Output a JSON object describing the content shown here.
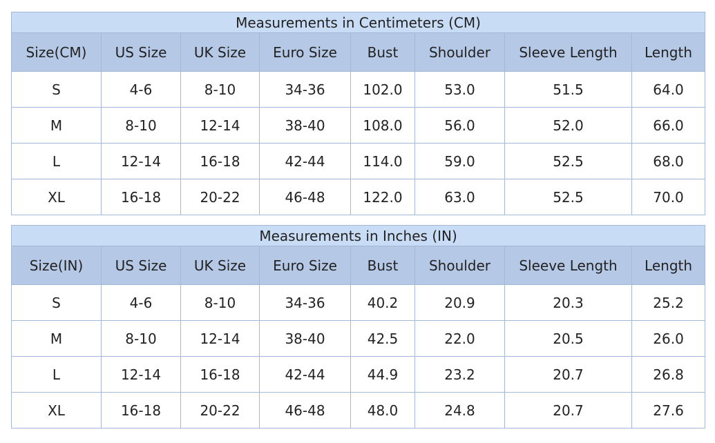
{
  "tables": [
    {
      "title": "Measurements in Centimeters (CM)",
      "headers": [
        "Size(CM)",
        "US Size",
        "UK Size",
        "Euro Size",
        "Bust",
        "Shoulder",
        "Sleeve Length",
        "Length"
      ],
      "rows": [
        [
          "S",
          "4-6",
          "8-10",
          "34-36",
          "102.0",
          "53.0",
          "51.5",
          "64.0"
        ],
        [
          "M",
          "8-10",
          "12-14",
          "38-40",
          "108.0",
          "56.0",
          "52.0",
          "66.0"
        ],
        [
          "L",
          "12-14",
          "16-18",
          "42-44",
          "114.0",
          "59.0",
          "52.5",
          "68.0"
        ],
        [
          "XL",
          "16-18",
          "20-22",
          "46-48",
          "122.0",
          "63.0",
          "52.5",
          "70.0"
        ]
      ]
    },
    {
      "title": "Measurements in Inches (IN)",
      "headers": [
        "Size(IN)",
        "US Size",
        "UK Size",
        "Euro Size",
        "Bust",
        "Shoulder",
        "Sleeve Length",
        "Length"
      ],
      "rows": [
        [
          "S",
          "4-6",
          "8-10",
          "34-36",
          "40.2",
          "20.9",
          "20.3",
          "25.2"
        ],
        [
          "M",
          "8-10",
          "12-14",
          "38-40",
          "42.5",
          "22.0",
          "20.5",
          "26.0"
        ],
        [
          "L",
          "12-14",
          "16-18",
          "42-44",
          "44.9",
          "23.2",
          "20.7",
          "26.8"
        ],
        [
          "XL",
          "16-18",
          "20-22",
          "46-48",
          "48.0",
          "24.8",
          "20.7",
          "27.6"
        ]
      ]
    }
  ],
  "colors": {
    "title_bg": "#c9dcf6",
    "header_bg": "#b5c9e6",
    "border": "#a3b8d6"
  }
}
